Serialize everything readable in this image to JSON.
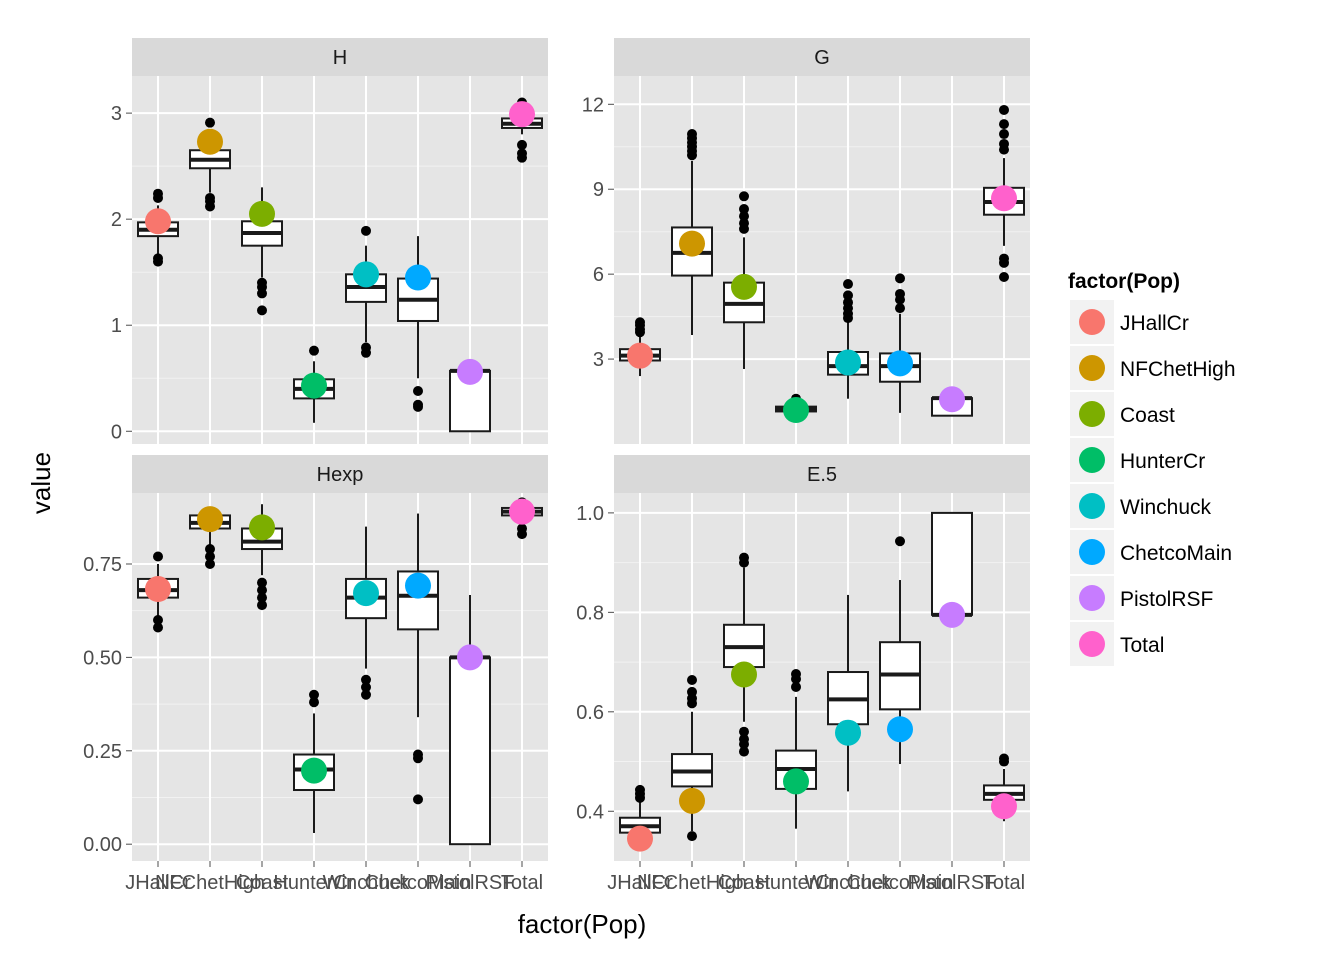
{
  "chart_data": {
    "type": "boxplot",
    "xlabel": "factor(Pop)",
    "ylabel": "value",
    "categories": [
      "JHallCr",
      "NFChetHigh",
      "Coast",
      "HunterCr",
      "Winchuck",
      "ChetcoMain",
      "PistolRSF",
      "Total"
    ],
    "legend": {
      "title": "factor(Pop)",
      "position": "right",
      "entries": [
        {
          "label": "JHallCr",
          "color": "#F8766D"
        },
        {
          "label": "NFChetHigh",
          "color": "#CD9600"
        },
        {
          "label": "Coast",
          "color": "#7CAE00"
        },
        {
          "label": "HunterCr",
          "color": "#00BE67"
        },
        {
          "label": "Winchuck",
          "color": "#00BFC4"
        },
        {
          "label": "ChetcoMain",
          "color": "#00A9FF"
        },
        {
          "label": "PistolRSF",
          "color": "#C77CFF"
        },
        {
          "label": "Total",
          "color": "#FF61CC"
        }
      ]
    },
    "panels": [
      {
        "strip": "H",
        "ylim": [
          -0.12,
          3.35
        ],
        "yticks": [
          0,
          1,
          2,
          3
        ],
        "ytick_labels": [
          "0",
          "1",
          "2",
          "3"
        ],
        "boxes": [
          {
            "q1": 1.84,
            "median": 1.9,
            "q3": 1.97,
            "wmin": 1.66,
            "wmax": 2.13,
            "outliers": [
              1.6,
              1.63,
              2.2,
              2.24
            ]
          },
          {
            "q1": 2.48,
            "median": 2.56,
            "q3": 2.65,
            "wmin": 2.25,
            "wmax": 2.85,
            "outliers": [
              2.12,
              2.17,
              2.2,
              2.91
            ]
          },
          {
            "q1": 1.75,
            "median": 1.87,
            "q3": 1.98,
            "wmin": 1.45,
            "wmax": 2.3,
            "outliers": [
              1.14,
              1.3,
              1.36,
              1.4
            ]
          },
          {
            "q1": 0.31,
            "median": 0.4,
            "q3": 0.49,
            "wmin": 0.08,
            "wmax": 0.66,
            "outliers": [
              0.76
            ]
          },
          {
            "q1": 1.22,
            "median": 1.36,
            "q3": 1.48,
            "wmin": 0.84,
            "wmax": 1.75,
            "outliers": [
              0.74,
              0.79,
              1.89
            ]
          },
          {
            "q1": 1.04,
            "median": 1.24,
            "q3": 1.44,
            "wmin": 0.5,
            "wmax": 1.84,
            "outliers": [
              0.23,
              0.25,
              0.38
            ]
          },
          {
            "q1": 0.0,
            "median": 0.57,
            "q3": 0.57,
            "wmin": 0.0,
            "wmax": 0.57,
            "outliers": []
          },
          {
            "q1": 2.86,
            "median": 2.9,
            "q3": 2.95,
            "wmin": 2.8,
            "wmax": 3.05,
            "outliers": [
              2.58,
              2.62,
              2.7,
              3.1
            ]
          }
        ],
        "points": [
          1.98,
          2.73,
          2.05,
          0.43,
          1.48,
          1.45,
          0.56,
          2.99
        ]
      },
      {
        "strip": "G",
        "ylim": [
          0.0,
          13.0
        ],
        "yticks": [
          3,
          6,
          9,
          12
        ],
        "ytick_labels": [
          "3",
          "6",
          "9",
          "12"
        ],
        "boxes": [
          {
            "q1": 2.95,
            "median": 3.12,
            "q3": 3.35,
            "wmin": 2.4,
            "wmax": 3.85,
            "outliers": [
              3.95,
              4.05,
              4.2,
              4.3
            ]
          },
          {
            "q1": 5.95,
            "median": 6.75,
            "q3": 7.65,
            "wmin": 3.85,
            "wmax": 10.0,
            "outliers": [
              10.2,
              10.35,
              10.5,
              10.65,
              10.8,
              10.95
            ]
          },
          {
            "q1": 4.3,
            "median": 4.95,
            "q3": 5.7,
            "wmin": 2.65,
            "wmax": 7.3,
            "outliers": [
              7.6,
              7.8,
              8.05,
              8.3,
              8.75
            ]
          },
          {
            "q1": 1.15,
            "median": 1.22,
            "q3": 1.32,
            "wmin": 1.12,
            "wmax": 1.45,
            "outliers": [
              1.6
            ]
          },
          {
            "q1": 2.45,
            "median": 2.75,
            "q3": 3.25,
            "wmin": 1.6,
            "wmax": 4.3,
            "outliers": [
              4.45,
              4.6,
              4.8,
              5.0,
              5.25,
              5.65
            ]
          },
          {
            "q1": 2.2,
            "median": 2.75,
            "q3": 3.2,
            "wmin": 1.1,
            "wmax": 4.6,
            "outliers": [
              4.8,
              5.1,
              5.3,
              5.85
            ]
          },
          {
            "q1": 1.0,
            "median": 1.62,
            "q3": 1.62,
            "wmin": 1.0,
            "wmax": 1.62,
            "outliers": []
          },
          {
            "q1": 8.1,
            "median": 8.55,
            "q3": 9.05,
            "wmin": 7.0,
            "wmax": 10.1,
            "outliers": [
              5.9,
              6.4,
              6.55,
              10.4,
              10.6,
              10.95,
              11.3,
              11.8
            ]
          }
        ],
        "points": [
          3.12,
          7.08,
          5.55,
          1.2,
          2.88,
          2.85,
          1.58,
          8.68
        ]
      },
      {
        "strip": "Hexp",
        "ylim": [
          -0.045,
          0.94
        ],
        "yticks": [
          0.0,
          0.25,
          0.5,
          0.75
        ],
        "ytick_labels": [
          "0.00",
          "0.25",
          "0.50",
          "0.75"
        ],
        "boxes": [
          {
            "q1": 0.66,
            "median": 0.68,
            "q3": 0.71,
            "wmin": 0.61,
            "wmax": 0.75,
            "outliers": [
              0.58,
              0.6,
              0.77
            ]
          },
          {
            "q1": 0.845,
            "median": 0.86,
            "q3": 0.88,
            "wmin": 0.8,
            "wmax": 0.9,
            "outliers": [
              0.75,
              0.77,
              0.79
            ]
          },
          {
            "q1": 0.79,
            "median": 0.81,
            "q3": 0.845,
            "wmin": 0.72,
            "wmax": 0.91,
            "outliers": [
              0.64,
              0.66,
              0.68,
              0.7
            ]
          },
          {
            "q1": 0.145,
            "median": 0.2,
            "q3": 0.24,
            "wmin": 0.03,
            "wmax": 0.35,
            "outliers": [
              0.38,
              0.4
            ]
          },
          {
            "q1": 0.605,
            "median": 0.66,
            "q3": 0.71,
            "wmin": 0.47,
            "wmax": 0.85,
            "outliers": [
              0.4,
              0.42,
              0.44
            ]
          },
          {
            "q1": 0.575,
            "median": 0.665,
            "q3": 0.73,
            "wmin": 0.34,
            "wmax": 0.885,
            "outliers": [
              0.12,
              0.23,
              0.24
            ]
          },
          {
            "q1": 0.0,
            "median": 0.5,
            "q3": 0.5,
            "wmin": 0.0,
            "wmax": 0.667,
            "outliers": []
          },
          {
            "q1": 0.88,
            "median": 0.89,
            "q3": 0.9,
            "wmin": 0.87,
            "wmax": 0.91,
            "outliers": [
              0.83,
              0.845,
              0.915
            ]
          }
        ],
        "points": [
          0.683,
          0.87,
          0.848,
          0.197,
          0.672,
          0.692,
          0.5,
          0.89
        ]
      },
      {
        "strip": "E.5",
        "ylim": [
          0.3,
          1.04
        ],
        "yticks": [
          0.4,
          0.6,
          0.8,
          1.0
        ],
        "ytick_labels": [
          "0.4",
          "0.6",
          "0.8",
          "1.0"
        ],
        "boxes": [
          {
            "q1": 0.357,
            "median": 0.37,
            "q3": 0.387,
            "wmin": 0.33,
            "wmax": 0.42,
            "outliers": [
              0.427,
              0.435,
              0.443
            ]
          },
          {
            "q1": 0.45,
            "median": 0.48,
            "q3": 0.515,
            "wmin": 0.36,
            "wmax": 0.6,
            "outliers": [
              0.35,
              0.617,
              0.627,
              0.64,
              0.664
            ]
          },
          {
            "q1": 0.69,
            "median": 0.73,
            "q3": 0.775,
            "wmin": 0.58,
            "wmax": 0.89,
            "outliers": [
              0.52,
              0.535,
              0.545,
              0.56,
              0.9,
              0.91
            ]
          },
          {
            "q1": 0.445,
            "median": 0.485,
            "q3": 0.522,
            "wmin": 0.365,
            "wmax": 0.63,
            "outliers": [
              0.65,
              0.666,
              0.676
            ]
          },
          {
            "q1": 0.575,
            "median": 0.625,
            "q3": 0.68,
            "wmin": 0.44,
            "wmax": 0.835,
            "outliers": []
          },
          {
            "q1": 0.605,
            "median": 0.675,
            "q3": 0.74,
            "wmin": 0.495,
            "wmax": 0.865,
            "outliers": [
              0.943
            ]
          },
          {
            "q1": 0.795,
            "median": 0.795,
            "q3": 1.0,
            "wmin": 0.795,
            "wmax": 1.0,
            "outliers": []
          },
          {
            "q1": 0.423,
            "median": 0.435,
            "q3": 0.452,
            "wmin": 0.38,
            "wmax": 0.485,
            "outliers": [
              0.5,
              0.506
            ]
          }
        ],
        "points": [
          0.345,
          0.421,
          0.675,
          0.46,
          0.558,
          0.565,
          0.795,
          0.41
        ]
      }
    ]
  }
}
